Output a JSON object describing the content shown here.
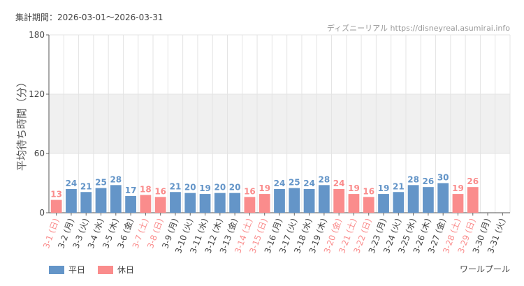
{
  "header": {
    "period_label": "集計期間：2026-03-01〜2026-03-31",
    "credit": "ディズニーリアル https://disneyreal.asumirai.info"
  },
  "legend": {
    "weekday_label": "平日",
    "holiday_label": "休日"
  },
  "attraction": "ワールプール",
  "colors": {
    "weekday": "#6495c8",
    "holiday": "#fa8c8c",
    "band": "#f0f0f0",
    "grid": "#e4e4e4"
  },
  "chart_data": {
    "type": "bar",
    "title": "",
    "xlabel": "",
    "ylabel": "平均待ち時間（分）",
    "ylim": [
      0,
      180
    ],
    "yticks": [
      0,
      60,
      120,
      180
    ],
    "shaded_range": [
      60,
      120
    ],
    "categories": [
      "3-1 (日)",
      "3-2 (月)",
      "3-3 (火)",
      "3-4 (水)",
      "3-5 (木)",
      "3-6 (金)",
      "3-7 (土)",
      "3-8 (日)",
      "3-9 (月)",
      "3-10 (火)",
      "3-11 (水)",
      "3-12 (木)",
      "3-13 (金)",
      "3-14 (土)",
      "3-15 (日)",
      "3-16 (月)",
      "3-17 (火)",
      "3-18 (水)",
      "3-19 (木)",
      "3-20 (金)",
      "3-21 (土)",
      "3-22 (日)",
      "3-23 (月)",
      "3-24 (火)",
      "3-25 (水)",
      "3-26 (木)",
      "3-27 (金)",
      "3-28 (土)",
      "3-29 (日)",
      "3-30 (月)",
      "3-31 (火)"
    ],
    "values": [
      13,
      24,
      21,
      25,
      28,
      17,
      18,
      16,
      21,
      20,
      19,
      20,
      20,
      16,
      19,
      24,
      25,
      24,
      28,
      24,
      19,
      16,
      19,
      21,
      28,
      26,
      30,
      19,
      26,
      null,
      null
    ],
    "day_type": [
      "holiday",
      "weekday",
      "weekday",
      "weekday",
      "weekday",
      "weekday",
      "holiday",
      "holiday",
      "weekday",
      "weekday",
      "weekday",
      "weekday",
      "weekday",
      "holiday",
      "holiday",
      "weekday",
      "weekday",
      "weekday",
      "weekday",
      "holiday",
      "holiday",
      "holiday",
      "weekday",
      "weekday",
      "weekday",
      "weekday",
      "weekday",
      "holiday",
      "holiday",
      "weekday",
      "weekday"
    ],
    "series": [
      {
        "name": "平日",
        "key": "weekday"
      },
      {
        "name": "休日",
        "key": "holiday"
      }
    ]
  }
}
